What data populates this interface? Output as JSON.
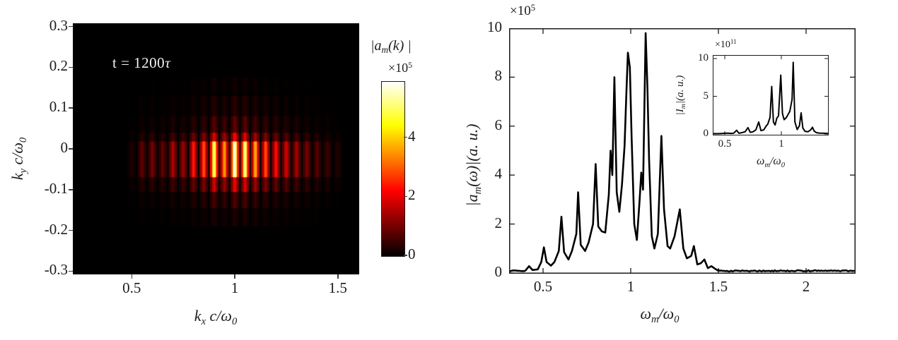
{
  "page": {
    "background": "#ffffff",
    "text_color": "#1c1c1c",
    "line_color": "#000000"
  },
  "left_panel": {
    "annotation_pre": "t = 1200",
    "annotation_tau": "τ",
    "xlabel": {
      "base": "k",
      "sub": "x",
      "rest": " c/ω",
      "rsub": "0"
    },
    "ylabel": {
      "base": "k",
      "sub": "y",
      "rest": " c/ω",
      "rsub": "0"
    },
    "colorbar_title": {
      "base": "|a",
      "sub": "m",
      "rest": "(k) |"
    },
    "colorbar_exponent": {
      "base": "×10",
      "sup": "5"
    }
  },
  "right_panel": {
    "exponent": {
      "base": "×10",
      "sup": "5"
    },
    "ylabel": {
      "base": "|a",
      "sub": "m",
      "rest": "(ω)|(a. u.)"
    },
    "xlabel": {
      "base": "ω",
      "sub": "m",
      "rest": "/ω",
      "rsub": "0"
    },
    "inset": {
      "exponent": {
        "base": "×10",
        "sup": "11"
      },
      "ylabel": {
        "base": "|I",
        "sub": "m",
        "rest": "|(a. u.)"
      },
      "xlabel": {
        "base": "ω",
        "sub": "m",
        "rest": "/ω",
        "rsub": "0"
      }
    }
  },
  "chart_data": [
    {
      "type": "heatmap",
      "title": "k-space spectrum |a_m(k)| at t = 1200τ",
      "xlabel": "k_x c/ω_0",
      "ylabel": "k_y c/ω_0",
      "xlim": [
        0.22,
        1.6
      ],
      "ylim": [
        -0.31,
        0.31
      ],
      "xticks": [
        "0.5",
        "1",
        "1.5"
      ],
      "yticks": [
        "0.3",
        "0.2",
        "0.1",
        "0",
        "-0.1",
        "-0.2",
        "-0.3"
      ],
      "annotation": "t = 1200τ",
      "colormap": "hot",
      "colorbar": {
        "label": "|a_m(k)|",
        "scale": "×10^5",
        "ticks": [
          0,
          2,
          4
        ],
        "max_value_1e5": 5.9
      },
      "stripes_kx_value_1e5": [
        [
          0.5,
          0.25
        ],
        [
          0.55,
          0.85
        ],
        [
          0.6,
          1.05
        ],
        [
          0.65,
          0.85
        ],
        [
          0.7,
          1.55
        ],
        [
          0.75,
          1.35
        ],
        [
          0.8,
          2.4
        ],
        [
          0.85,
          2.9
        ],
        [
          0.9,
          4.9
        ],
        [
          0.95,
          3.5
        ],
        [
          1.0,
          5.6
        ],
        [
          1.05,
          5.1
        ],
        [
          1.1,
          3.7
        ],
        [
          1.15,
          2.9
        ],
        [
          1.2,
          2.3
        ],
        [
          1.25,
          1.85
        ],
        [
          1.3,
          1.45
        ],
        [
          1.35,
          1.05
        ],
        [
          1.4,
          0.8
        ],
        [
          1.45,
          0.55
        ],
        [
          1.5,
          0.3
        ]
      ],
      "ky_bands_center_height_weight": [
        [
          0.155,
          0.04,
          0.03
        ],
        [
          0.105,
          0.05,
          0.07
        ],
        [
          0.06,
          0.04,
          0.16
        ],
        [
          0.027,
          0.025,
          0.4
        ],
        [
          -0.026,
          0.088,
          1.0
        ],
        [
          -0.088,
          0.036,
          0.38
        ],
        [
          -0.126,
          0.04,
          0.13
        ],
        [
          -0.168,
          0.044,
          0.05
        ]
      ]
    },
    {
      "type": "line",
      "series_name": "|a_m(ω)|",
      "xlabel": "ω_m/ω_0",
      "ylabel": "|a_m(ω)|(a. u.)",
      "y_scale": "×10^5",
      "xlim": [
        0.31,
        2.28
      ],
      "ylim": [
        0,
        10
      ],
      "xticks": [
        "0.5",
        "1",
        "1.5",
        "2"
      ],
      "yticks": [
        "0",
        "2",
        "4",
        "6",
        "8",
        "10"
      ],
      "line_color": "#000000",
      "points": [
        [
          0.4,
          0.1
        ],
        [
          0.42,
          0.28
        ],
        [
          0.44,
          0.12
        ],
        [
          0.47,
          0.15
        ],
        [
          0.49,
          0.45
        ],
        [
          0.505,
          1.05
        ],
        [
          0.52,
          0.45
        ],
        [
          0.545,
          0.3
        ],
        [
          0.565,
          0.45
        ],
        [
          0.59,
          0.9
        ],
        [
          0.605,
          2.3
        ],
        [
          0.62,
          0.85
        ],
        [
          0.645,
          0.55
        ],
        [
          0.665,
          0.9
        ],
        [
          0.69,
          1.6
        ],
        [
          0.7,
          3.3
        ],
        [
          0.715,
          1.15
        ],
        [
          0.74,
          0.9
        ],
        [
          0.76,
          1.25
        ],
        [
          0.785,
          2.0
        ],
        [
          0.8,
          4.45
        ],
        [
          0.815,
          1.9
        ],
        [
          0.835,
          1.7
        ],
        [
          0.855,
          1.65
        ],
        [
          0.875,
          3.2
        ],
        [
          0.885,
          5.0
        ],
        [
          0.895,
          4.0
        ],
        [
          0.907,
          8.0
        ],
        [
          0.92,
          3.3
        ],
        [
          0.935,
          2.5
        ],
        [
          0.95,
          3.6
        ],
        [
          0.965,
          5.2
        ],
        [
          0.975,
          7.3
        ],
        [
          0.984,
          9.0
        ],
        [
          0.995,
          8.4
        ],
        [
          1.005,
          5.6
        ],
        [
          1.02,
          2.0
        ],
        [
          1.035,
          1.35
        ],
        [
          1.05,
          2.9
        ],
        [
          1.06,
          4.1
        ],
        [
          1.07,
          3.4
        ],
        [
          1.085,
          9.8
        ],
        [
          1.095,
          7.6
        ],
        [
          1.105,
          4.6
        ],
        [
          1.12,
          1.5
        ],
        [
          1.135,
          1.0
        ],
        [
          1.155,
          1.6
        ],
        [
          1.175,
          5.6
        ],
        [
          1.19,
          2.6
        ],
        [
          1.21,
          1.1
        ],
        [
          1.225,
          1.0
        ],
        [
          1.25,
          1.5
        ],
        [
          1.28,
          2.6
        ],
        [
          1.3,
          1.0
        ],
        [
          1.32,
          0.6
        ],
        [
          1.345,
          0.7
        ],
        [
          1.36,
          1.1
        ],
        [
          1.38,
          0.35
        ],
        [
          1.4,
          0.4
        ],
        [
          1.42,
          0.55
        ],
        [
          1.44,
          0.2
        ],
        [
          1.46,
          0.28
        ],
        [
          1.48,
          0.18
        ],
        [
          1.5,
          0.12
        ]
      ],
      "noise_bands_from_to_base_amp": [
        [
          0.31,
          0.4,
          0.07,
          0.04
        ],
        [
          1.5,
          2.28,
          0.06,
          0.05
        ]
      ]
    },
    {
      "type": "line",
      "series_name": "|I_m|",
      "xlabel": "ω_m/ω_0",
      "ylabel": "|I_m|(a. u.)",
      "y_scale": "×10^11",
      "xlim": [
        0.39,
        1.42
      ],
      "ylim": [
        0,
        10
      ],
      "xticks": [
        "0.5",
        "1"
      ],
      "yticks": [
        "0",
        "5",
        "10"
      ],
      "line_color": "#000000",
      "points": [
        [
          0.4,
          0.06
        ],
        [
          0.44,
          0.05
        ],
        [
          0.48,
          0.08
        ],
        [
          0.52,
          0.12
        ],
        [
          0.555,
          0.08
        ],
        [
          0.58,
          0.12
        ],
        [
          0.605,
          0.5
        ],
        [
          0.625,
          0.1
        ],
        [
          0.655,
          0.2
        ],
        [
          0.68,
          0.3
        ],
        [
          0.705,
          0.85
        ],
        [
          0.725,
          0.22
        ],
        [
          0.75,
          0.3
        ],
        [
          0.775,
          0.55
        ],
        [
          0.8,
          1.6
        ],
        [
          0.82,
          0.45
        ],
        [
          0.845,
          0.55
        ],
        [
          0.865,
          1.05
        ],
        [
          0.88,
          1.3
        ],
        [
          0.9,
          2.2
        ],
        [
          0.915,
          6.3
        ],
        [
          0.93,
          1.6
        ],
        [
          0.945,
          1.2
        ],
        [
          0.96,
          2.1
        ],
        [
          0.975,
          2.4
        ],
        [
          0.995,
          7.8
        ],
        [
          1.01,
          2.7
        ],
        [
          1.025,
          1.9
        ],
        [
          1.045,
          2.2
        ],
        [
          1.06,
          2.6
        ],
        [
          1.075,
          3.0
        ],
        [
          1.095,
          4.6
        ],
        [
          1.105,
          9.5
        ],
        [
          1.12,
          1.6
        ],
        [
          1.14,
          0.6
        ],
        [
          1.16,
          1.1
        ],
        [
          1.175,
          2.8
        ],
        [
          1.19,
          0.8
        ],
        [
          1.21,
          0.35
        ],
        [
          1.235,
          0.3
        ],
        [
          1.26,
          0.55
        ],
        [
          1.275,
          0.9
        ],
        [
          1.29,
          0.4
        ],
        [
          1.31,
          0.18
        ],
        [
          1.34,
          0.12
        ],
        [
          1.37,
          0.1
        ],
        [
          1.4,
          0.08
        ],
        [
          1.418,
          0.07
        ]
      ],
      "noise_bands_from_to_base_amp": []
    }
  ]
}
